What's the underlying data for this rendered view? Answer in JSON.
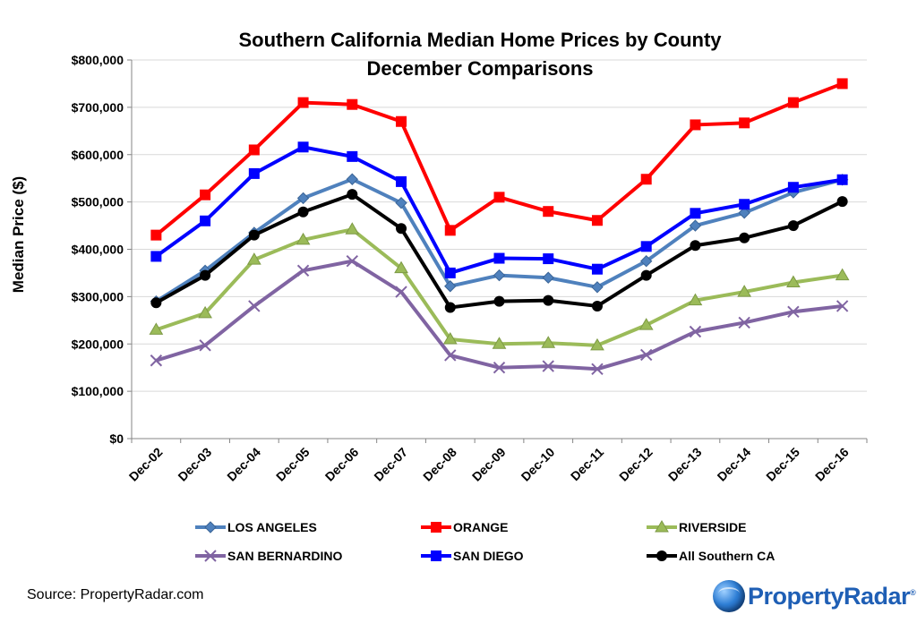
{
  "chart_data": {
    "type": "line",
    "title": "Southern California Median Home Prices by County",
    "subtitle": "December Comparisons",
    "xlabel": "",
    "ylabel": "Median Price ($)",
    "ylim": [
      0,
      800000
    ],
    "yticks": [
      "$0",
      "$100,000",
      "$200,000",
      "$300,000",
      "$400,000",
      "$500,000",
      "$600,000",
      "$700,000",
      "$800,000"
    ],
    "categories": [
      "Dec-02",
      "Dec-03",
      "Dec-04",
      "Dec-05",
      "Dec-06",
      "Dec-07",
      "Dec-08",
      "Dec-09",
      "Dec-10",
      "Dec-11",
      "Dec-12",
      "Dec-13",
      "Dec-14",
      "Dec-15",
      "Dec-16"
    ],
    "grid": "horizontal",
    "legend_position": "bottom",
    "series": [
      {
        "name": "LOS ANGELES",
        "color": "#4f81bd",
        "marker": "diamond",
        "values": [
          290000,
          355000,
          435000,
          508000,
          548000,
          498000,
          322000,
          345000,
          340000,
          320000,
          375000,
          450000,
          477000,
          520000,
          547000
        ]
      },
      {
        "name": "ORANGE",
        "color": "#ff0000",
        "marker": "square",
        "values": [
          430000,
          515000,
          610000,
          710000,
          706000,
          670000,
          440000,
          510000,
          480000,
          461000,
          548000,
          663000,
          667000,
          710000,
          750000
        ]
      },
      {
        "name": "RIVERSIDE",
        "color": "#9bbb59",
        "marker": "triangle",
        "values": [
          230000,
          265000,
          378000,
          420000,
          442000,
          360000,
          210000,
          200000,
          202000,
          197000,
          240000,
          292000,
          310000,
          330000,
          345000
        ]
      },
      {
        "name": "SAN BERNARDINO",
        "color": "#8064a2",
        "marker": "x",
        "values": [
          165000,
          197000,
          280000,
          355000,
          375000,
          310000,
          176000,
          150000,
          153000,
          147000,
          177000,
          226000,
          245000,
          268000,
          280000
        ]
      },
      {
        "name": "SAN DIEGO",
        "color": "#0000ff",
        "marker": "square",
        "values": [
          385000,
          460000,
          560000,
          616000,
          596000,
          543000,
          350000,
          381000,
          380000,
          358000,
          406000,
          476000,
          495000,
          531000,
          547000
        ]
      },
      {
        "name": "All Southern CA",
        "color": "#000000",
        "marker": "circle",
        "values": [
          287000,
          345000,
          430000,
          479000,
          516000,
          444000,
          277000,
          290000,
          292000,
          280000,
          345000,
          408000,
          424000,
          450000,
          501000
        ]
      }
    ]
  },
  "footer": {
    "source": "Source: PropertyRadar.com",
    "brand_name": "PropertyRadar",
    "brand_mark": "®"
  }
}
